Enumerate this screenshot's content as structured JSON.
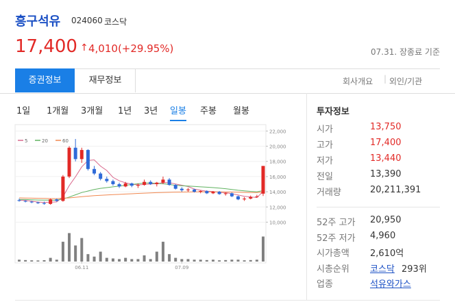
{
  "header": {
    "name": "흥구석유",
    "code": "024060",
    "market": "코스닥"
  },
  "price": {
    "current": "17,400",
    "change": "4,010(+29.95%)",
    "color": "#e22926",
    "date": "07.31. 장종료 기준"
  },
  "tabs": {
    "items": [
      "증권정보",
      "재무정보"
    ],
    "selected": 0,
    "links": [
      "회사개요",
      "외인/기관"
    ]
  },
  "periods": {
    "items": [
      "1일",
      "1개월",
      "3개월",
      "1년",
      "3년",
      "일봉",
      "주봉",
      "월봉"
    ],
    "selected": 5
  },
  "chart_data": {
    "type": "candlestick",
    "up_color": "#e22926",
    "down_color": "#2f6ad8",
    "volume_color": "#808080",
    "categories": [
      null,
      null,
      null,
      null,
      null,
      null,
      null,
      null,
      null,
      null,
      "06.11",
      null,
      null,
      null,
      null,
      null,
      null,
      null,
      null,
      null,
      null,
      null,
      null,
      null,
      null,
      null,
      "07.09",
      null,
      null,
      null,
      null,
      null,
      null,
      null,
      null,
      null,
      null,
      null,
      null,
      null
    ],
    "open": [
      12900,
      12800,
      12700,
      12600,
      12500,
      12400,
      13000,
      12800,
      16000,
      19800,
      18300,
      19500,
      17000,
      16400,
      15700,
      15400,
      15000,
      14700,
      15100,
      14800,
      14900,
      15300,
      15000,
      15200,
      15600,
      14900,
      14400,
      14200,
      14300,
      14000,
      14100,
      13800,
      14000,
      13700,
      13800,
      13400,
      13000,
      13100,
      13300,
      13750
    ],
    "high": [
      13100,
      12900,
      12800,
      12700,
      12700,
      13100,
      13100,
      16200,
      20000,
      20950,
      19800,
      19600,
      17400,
      16600,
      16000,
      15600,
      15200,
      15300,
      15200,
      15100,
      15600,
      15500,
      15300,
      16000,
      15800,
      15000,
      14600,
      14500,
      14400,
      14200,
      14200,
      14100,
      14100,
      13900,
      13900,
      13500,
      13300,
      13500,
      13600,
      17400
    ],
    "low": [
      12700,
      12600,
      12500,
      12400,
      12300,
      12300,
      12700,
      12700,
      15800,
      18000,
      17800,
      16800,
      16200,
      15500,
      15200,
      14800,
      14500,
      14600,
      14600,
      14500,
      14800,
      14900,
      14700,
      15000,
      14800,
      14300,
      14000,
      14000,
      13900,
      13800,
      13700,
      13700,
      13600,
      13500,
      13300,
      12900,
      12800,
      13000,
      13200,
      13440
    ],
    "close": [
      12800,
      12700,
      12600,
      12500,
      12400,
      13000,
      12800,
      16000,
      19800,
      18300,
      19500,
      17000,
      16400,
      15700,
      15400,
      15000,
      14700,
      15100,
      14800,
      14900,
      15300,
      15000,
      15200,
      15600,
      14900,
      14400,
      14200,
      14300,
      14000,
      14100,
      13800,
      14000,
      13700,
      13800,
      13400,
      13000,
      13100,
      13300,
      13390,
      17400
    ],
    "volume": [
      1500000,
      1200000,
      1000000,
      900000,
      1100000,
      3000000,
      1500000,
      16000000,
      23000000,
      13000000,
      19000000,
      6000000,
      4000000,
      8000000,
      3000000,
      2500000,
      2000000,
      3000000,
      2000000,
      2000000,
      5000000,
      2000000,
      8000000,
      16000000,
      6000000,
      3000000,
      2000000,
      2000000,
      1500000,
      1500000,
      1200000,
      1500000,
      1000000,
      1200000,
      1500000,
      1500000,
      1000000,
      1200000,
      1500000,
      20211391
    ],
    "vlim": [
      0,
      26000000
    ],
    "series": [
      {
        "name": "5",
        "color": "#d9688c",
        "values": [
          12900,
          12850,
          12750,
          12650,
          12600,
          12640,
          12660,
          13340,
          14800,
          15980,
          17280,
          18120,
          18200,
          17380,
          16800,
          15900,
          15440,
          15180,
          15000,
          14900,
          14960,
          15020,
          15060,
          15200,
          15200,
          15020,
          14860,
          14680,
          14360,
          14200,
          14080,
          14040,
          13920,
          13880,
          13740,
          13580,
          13400,
          13320,
          13240,
          14040
        ]
      },
      {
        "name": "20",
        "color": "#5fb25f",
        "values": [
          13000,
          12980,
          12950,
          12920,
          12900,
          12900,
          12890,
          13050,
          13300,
          13600,
          13900,
          14100,
          14300,
          14450,
          14550,
          14650,
          14750,
          14850,
          14950,
          15050,
          15150,
          15150,
          15100,
          15050,
          14950,
          14850,
          14800,
          14750,
          14700,
          14650,
          14600,
          14550,
          14480,
          14400,
          14300,
          14200,
          14120,
          14050,
          14000,
          14150
        ]
      },
      {
        "name": "60",
        "color": "#f0874f",
        "values": [
          13200,
          13180,
          13160,
          13140,
          13120,
          13110,
          13100,
          13150,
          13200,
          13280,
          13350,
          13420,
          13480,
          13530,
          13580,
          13620,
          13660,
          13700,
          13740,
          13780,
          13820,
          13850,
          13880,
          13910,
          13930,
          13950,
          13960,
          13970,
          13980,
          13990,
          13990,
          13990,
          13980,
          13970,
          13960,
          13940,
          13920,
          13900,
          13890,
          13950
        ]
      }
    ],
    "ylim": [
      9500,
      22300
    ],
    "yticks": [
      {
        "value": 10000,
        "label": "10,000"
      },
      {
        "value": 12000,
        "label": "12,000"
      },
      {
        "value": 14000,
        "label": "14,000"
      },
      {
        "value": 16000,
        "label": "16,000"
      },
      {
        "value": 18000,
        "label": "18,000"
      },
      {
        "value": 20000,
        "label": "20,000"
      },
      {
        "value": 22000,
        "label": "22,000"
      }
    ],
    "grid": true
  },
  "info": {
    "title": "투자정보",
    "rows": [
      {
        "label": "시가",
        "value": "13,750",
        "color": "#e22926"
      },
      {
        "label": "고가",
        "value": "17,400",
        "color": "#e22926"
      },
      {
        "label": "저가",
        "value": "13,440",
        "color": "#e22926"
      },
      {
        "label": "전일",
        "value": "13,390"
      },
      {
        "label": "거래량",
        "value": "20,211,391"
      }
    ],
    "rows2": [
      {
        "label": "52주 고가",
        "value": "20,950"
      },
      {
        "label": "52주 저가",
        "value": "4,960"
      },
      {
        "label": "시가총액",
        "value": "2,610억"
      },
      {
        "label": "시총순위",
        "link": "코스닥",
        "value": "293위"
      },
      {
        "label": "업종",
        "link": "석유와가스"
      }
    ]
  }
}
